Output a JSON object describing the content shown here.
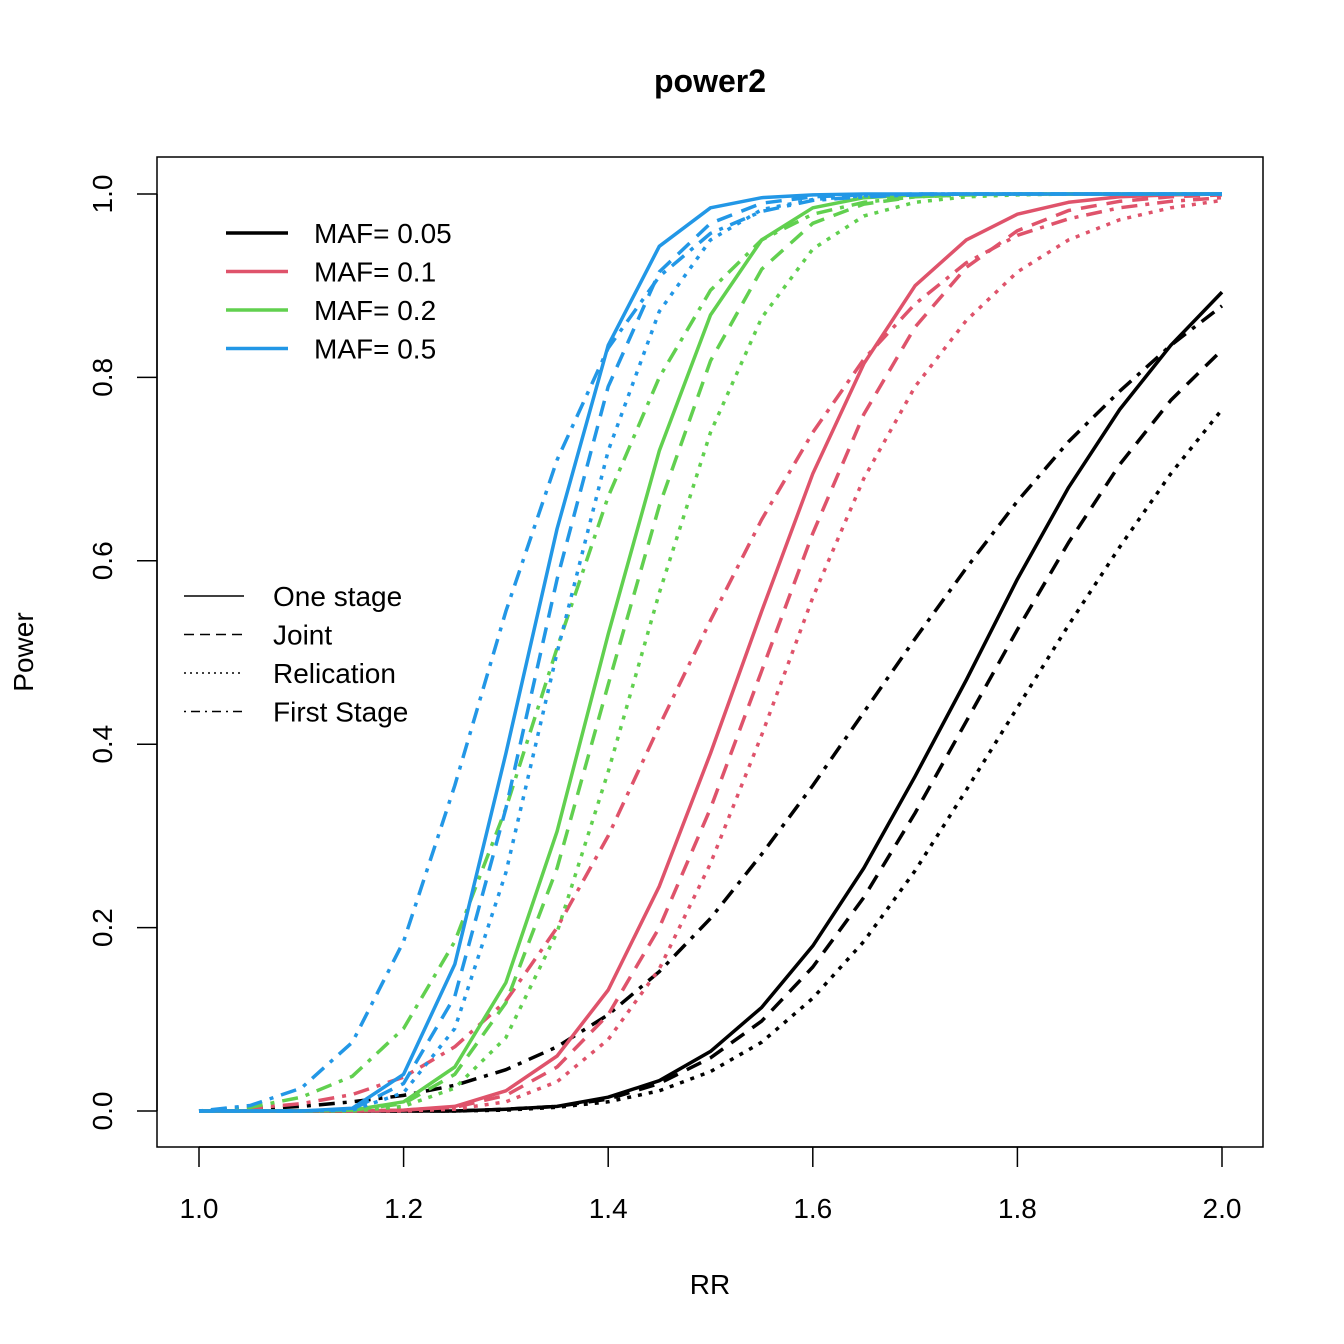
{
  "chart_data": {
    "type": "line",
    "title": "power2",
    "xlabel": "RR",
    "ylabel": "Power",
    "xlim": [
      1.0,
      2.0
    ],
    "ylim": [
      0.0,
      1.0
    ],
    "x_ticks": [
      "1.0",
      "1.2",
      "1.4",
      "1.6",
      "1.8",
      "2.0"
    ],
    "y_ticks": [
      "0.0",
      "0.2",
      "0.4",
      "0.6",
      "0.8",
      "1.0"
    ],
    "grid": false,
    "x": [
      1.0,
      1.05,
      1.1,
      1.15,
      1.2,
      1.25,
      1.3,
      1.35,
      1.4,
      1.45,
      1.5,
      1.55,
      1.6,
      1.65,
      1.7,
      1.75,
      1.8,
      1.85,
      1.9,
      1.95,
      2.0
    ],
    "colors": {
      "MAF= 0.05": "#000000",
      "MAF= 0.1": "#DF536B",
      "MAF= 0.2": "#61D04F",
      "MAF= 0.5": "#2297E6"
    },
    "legend_color": {
      "placement": "top-left",
      "entries": [
        "MAF= 0.05",
        "MAF= 0.1",
        "MAF= 0.2",
        "MAF= 0.5"
      ]
    },
    "legend_linetype": {
      "placement": "center-left",
      "entries": [
        {
          "label": "One stage",
          "style": "solid"
        },
        {
          "label": "Joint",
          "style": "dashed"
        },
        {
          "label": "Relication",
          "style": "dotted"
        },
        {
          "label": "First Stage",
          "style": "dotdash"
        }
      ]
    },
    "series": [
      {
        "maf": "MAF= 0.05",
        "style": "solid",
        "values": [
          0.0,
          0.0,
          0.0,
          0.0,
          0.0,
          0.0,
          0.002,
          0.005,
          0.015,
          0.033,
          0.065,
          0.113,
          0.18,
          0.265,
          0.365,
          0.47,
          0.58,
          0.68,
          0.765,
          0.835,
          0.893
        ]
      },
      {
        "maf": "MAF= 0.05",
        "style": "dashed",
        "values": [
          0.0,
          0.0,
          0.0,
          0.0,
          0.0,
          0.0,
          0.002,
          0.005,
          0.013,
          0.03,
          0.058,
          0.098,
          0.157,
          0.233,
          0.325,
          0.425,
          0.525,
          0.62,
          0.705,
          0.775,
          0.83
        ]
      },
      {
        "maf": "MAF= 0.05",
        "style": "dotted",
        "values": [
          0.0,
          0.0,
          0.0,
          0.0,
          0.0,
          0.0,
          0.001,
          0.004,
          0.01,
          0.022,
          0.043,
          0.075,
          0.123,
          0.185,
          0.262,
          0.35,
          0.44,
          0.53,
          0.615,
          0.695,
          0.765
        ]
      },
      {
        "maf": "MAF= 0.05",
        "style": "dotdash",
        "values": [
          0.0,
          0.002,
          0.005,
          0.01,
          0.017,
          0.028,
          0.045,
          0.07,
          0.105,
          0.152,
          0.21,
          0.28,
          0.355,
          0.435,
          0.515,
          0.592,
          0.665,
          0.73,
          0.785,
          0.835,
          0.878
        ]
      },
      {
        "maf": "MAF= 0.1",
        "style": "solid",
        "values": [
          0.0,
          0.0,
          0.0,
          0.0,
          0.001,
          0.005,
          0.022,
          0.06,
          0.132,
          0.245,
          0.39,
          0.545,
          0.695,
          0.815,
          0.9,
          0.95,
          0.978,
          0.991,
          0.997,
          0.999,
          1.0
        ]
      },
      {
        "maf": "MAF= 0.1",
        "style": "dashed",
        "values": [
          0.0,
          0.0,
          0.0,
          0.0,
          0.001,
          0.004,
          0.017,
          0.048,
          0.105,
          0.2,
          0.33,
          0.48,
          0.63,
          0.76,
          0.855,
          0.92,
          0.96,
          0.982,
          0.992,
          0.997,
          0.999
        ]
      },
      {
        "maf": "MAF= 0.1",
        "style": "dotted",
        "values": [
          0.0,
          0.0,
          0.0,
          0.0,
          0.0,
          0.002,
          0.01,
          0.032,
          0.078,
          0.155,
          0.27,
          0.41,
          0.56,
          0.69,
          0.79,
          0.862,
          0.915,
          0.95,
          0.972,
          0.985,
          0.993
        ]
      },
      {
        "maf": "MAF= 0.1",
        "style": "dotdash",
        "values": [
          0.0,
          0.003,
          0.008,
          0.018,
          0.037,
          0.07,
          0.12,
          0.2,
          0.3,
          0.42,
          0.535,
          0.645,
          0.74,
          0.82,
          0.88,
          0.925,
          0.955,
          0.973,
          0.985,
          0.992,
          0.996
        ]
      },
      {
        "maf": "MAF= 0.2",
        "style": "solid",
        "values": [
          0.0,
          0.0,
          0.0,
          0.001,
          0.01,
          0.048,
          0.14,
          0.305,
          0.52,
          0.72,
          0.868,
          0.95,
          0.985,
          0.996,
          0.999,
          1.0,
          1.0,
          1.0,
          1.0,
          1.0,
          1.0
        ]
      },
      {
        "maf": "MAF= 0.2",
        "style": "dashed",
        "values": [
          0.0,
          0.0,
          0.0,
          0.001,
          0.008,
          0.04,
          0.118,
          0.265,
          0.465,
          0.66,
          0.818,
          0.918,
          0.968,
          0.989,
          0.997,
          0.999,
          1.0,
          1.0,
          1.0,
          1.0,
          1.0
        ]
      },
      {
        "maf": "MAF= 0.2",
        "style": "dotted",
        "values": [
          0.0,
          0.0,
          0.0,
          0.0,
          0.005,
          0.025,
          0.08,
          0.195,
          0.37,
          0.565,
          0.74,
          0.865,
          0.94,
          0.976,
          0.991,
          0.997,
          0.999,
          1.0,
          1.0,
          1.0,
          1.0
        ]
      },
      {
        "maf": "MAF= 0.2",
        "style": "dotdash",
        "values": [
          0.0,
          0.004,
          0.015,
          0.038,
          0.09,
          0.185,
          0.33,
          0.505,
          0.67,
          0.8,
          0.895,
          0.95,
          0.978,
          0.991,
          0.997,
          0.999,
          1.0,
          1.0,
          1.0,
          1.0,
          1.0
        ]
      },
      {
        "maf": "MAF= 0.5",
        "style": "solid",
        "values": [
          0.0,
          0.0,
          0.0,
          0.003,
          0.04,
          0.16,
          0.39,
          0.635,
          0.835,
          0.943,
          0.985,
          0.996,
          0.999,
          1.0,
          1.0,
          1.0,
          1.0,
          1.0,
          1.0,
          1.0,
          1.0
        ]
      },
      {
        "maf": "MAF= 0.5",
        "style": "dashed",
        "values": [
          0.0,
          0.0,
          0.0,
          0.002,
          0.03,
          0.125,
          0.33,
          0.58,
          0.79,
          0.915,
          0.968,
          0.99,
          0.997,
          0.999,
          1.0,
          1.0,
          1.0,
          1.0,
          1.0,
          1.0,
          1.0
        ]
      },
      {
        "maf": "MAF= 0.5",
        "style": "dotted",
        "values": [
          0.0,
          0.0,
          0.0,
          0.001,
          0.02,
          0.09,
          0.26,
          0.5,
          0.72,
          0.872,
          0.95,
          0.983,
          0.994,
          0.998,
          1.0,
          1.0,
          1.0,
          1.0,
          1.0,
          1.0,
          1.0
        ]
      },
      {
        "maf": "MAF= 0.5",
        "style": "dotdash",
        "values": [
          0.0,
          0.006,
          0.025,
          0.075,
          0.185,
          0.355,
          0.545,
          0.71,
          0.832,
          0.91,
          0.957,
          0.981,
          0.993,
          0.997,
          0.999,
          1.0,
          1.0,
          1.0,
          1.0,
          1.0,
          1.0
        ]
      }
    ]
  }
}
